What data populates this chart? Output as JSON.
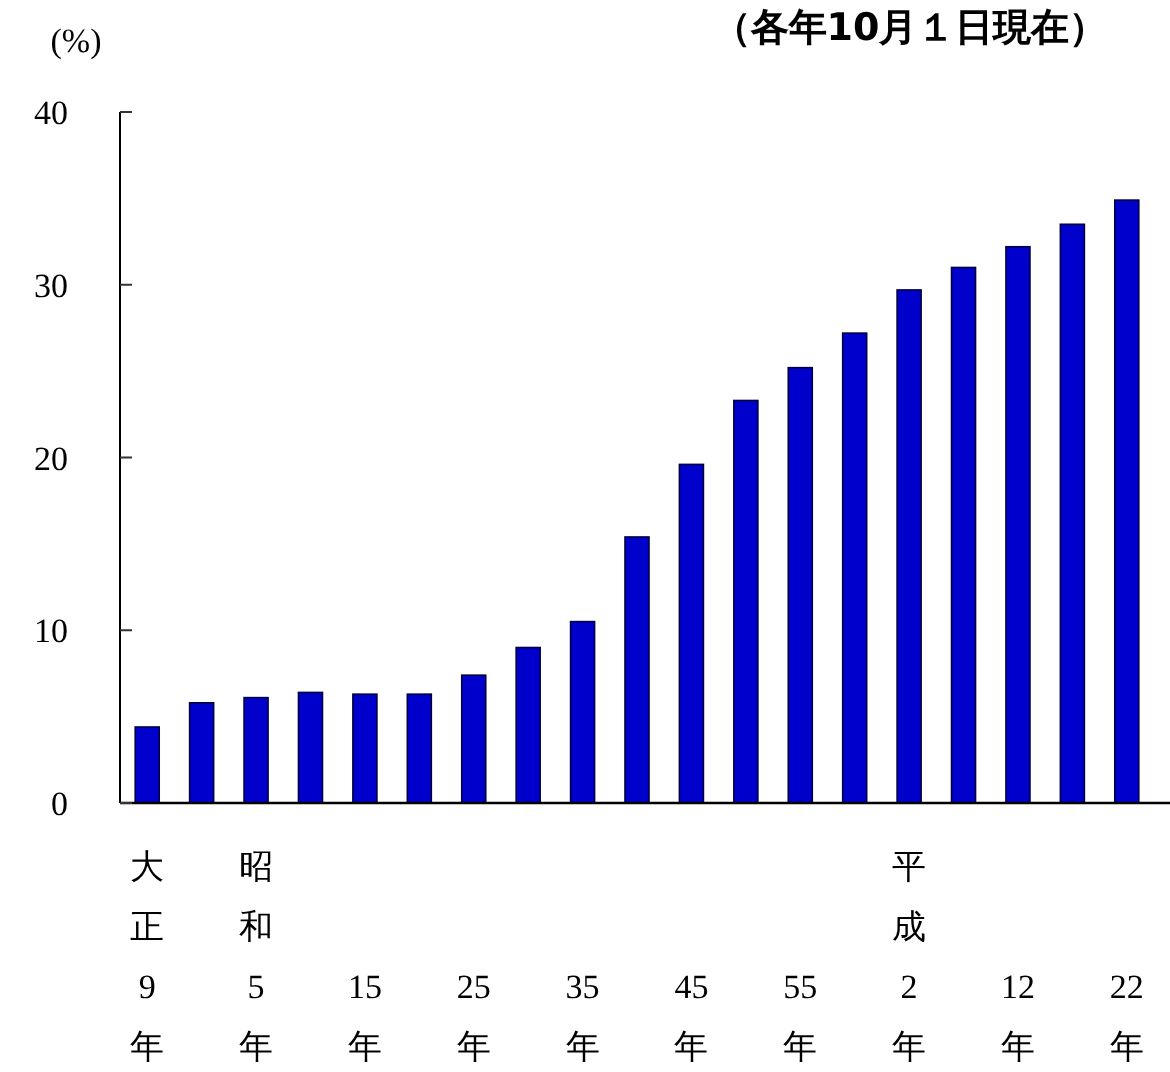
{
  "chart_data": {
    "type": "bar",
    "subtitle": "（各年10月１日現在）",
    "ylabel": "(%)",
    "categories": [
      "大正9年",
      null,
      "昭和5年",
      null,
      "15年",
      null,
      "25年",
      null,
      "35年",
      null,
      "45年",
      null,
      "55年",
      null,
      "平成2年",
      null,
      "12年",
      null,
      "22年"
    ],
    "values": [
      4.4,
      5.8,
      6.1,
      6.4,
      6.3,
      6.3,
      7.4,
      9.0,
      10.5,
      15.4,
      19.6,
      23.3,
      25.2,
      27.2,
      29.7,
      31.0,
      32.2,
      33.5,
      34.9
    ],
    "color": "#0000cc",
    "ylim": [
      0,
      40
    ],
    "yticks": [
      0,
      10,
      20,
      30,
      40
    ]
  }
}
